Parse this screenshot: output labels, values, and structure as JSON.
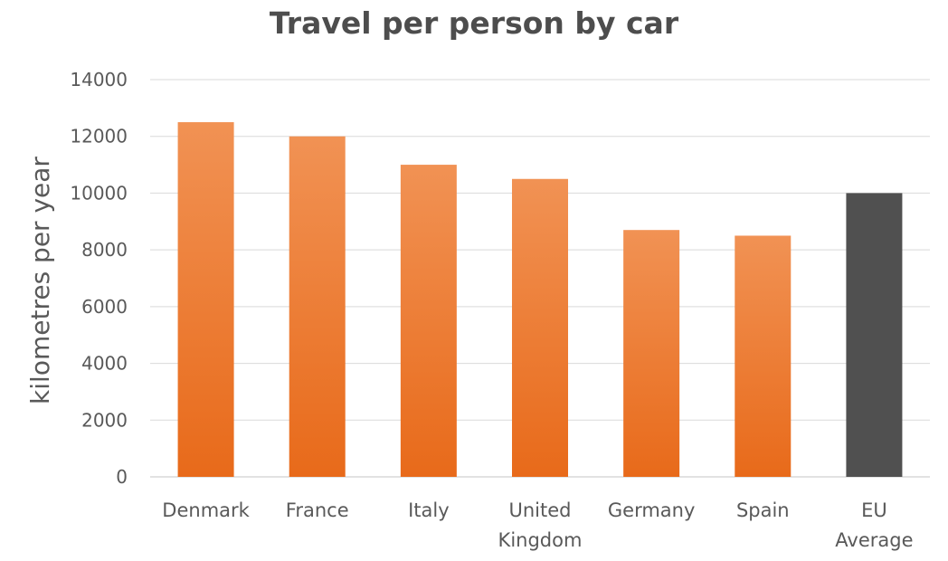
{
  "chart_data": {
    "type": "bar",
    "title": "Travel per person by car",
    "xlabel": "",
    "ylabel": "kilometres per year",
    "categories": [
      "Denmark",
      "France",
      "Italy",
      "United Kingdom",
      "Germany",
      "Spain",
      "EU Average"
    ],
    "category_lines": [
      [
        "Denmark"
      ],
      [
        "France"
      ],
      [
        "Italy"
      ],
      [
        "United",
        "Kingdom"
      ],
      [
        "Germany"
      ],
      [
        "Spain"
      ],
      [
        "EU",
        "Average"
      ]
    ],
    "values": [
      12500,
      12000,
      11000,
      10500,
      8700,
      8500,
      10000
    ],
    "ylim": [
      0,
      14000
    ],
    "yticks": [
      0,
      2000,
      4000,
      6000,
      8000,
      10000,
      12000,
      14000
    ],
    "grid": true,
    "legend": "none",
    "colors": {
      "bar_top": "#f19254",
      "bar_bottom": "#e86a1a",
      "highlight": "#505050",
      "highlight_category": "EU Average",
      "grid": "#d9d9d9",
      "text": "#595959",
      "title": "#4d4d4d"
    }
  }
}
